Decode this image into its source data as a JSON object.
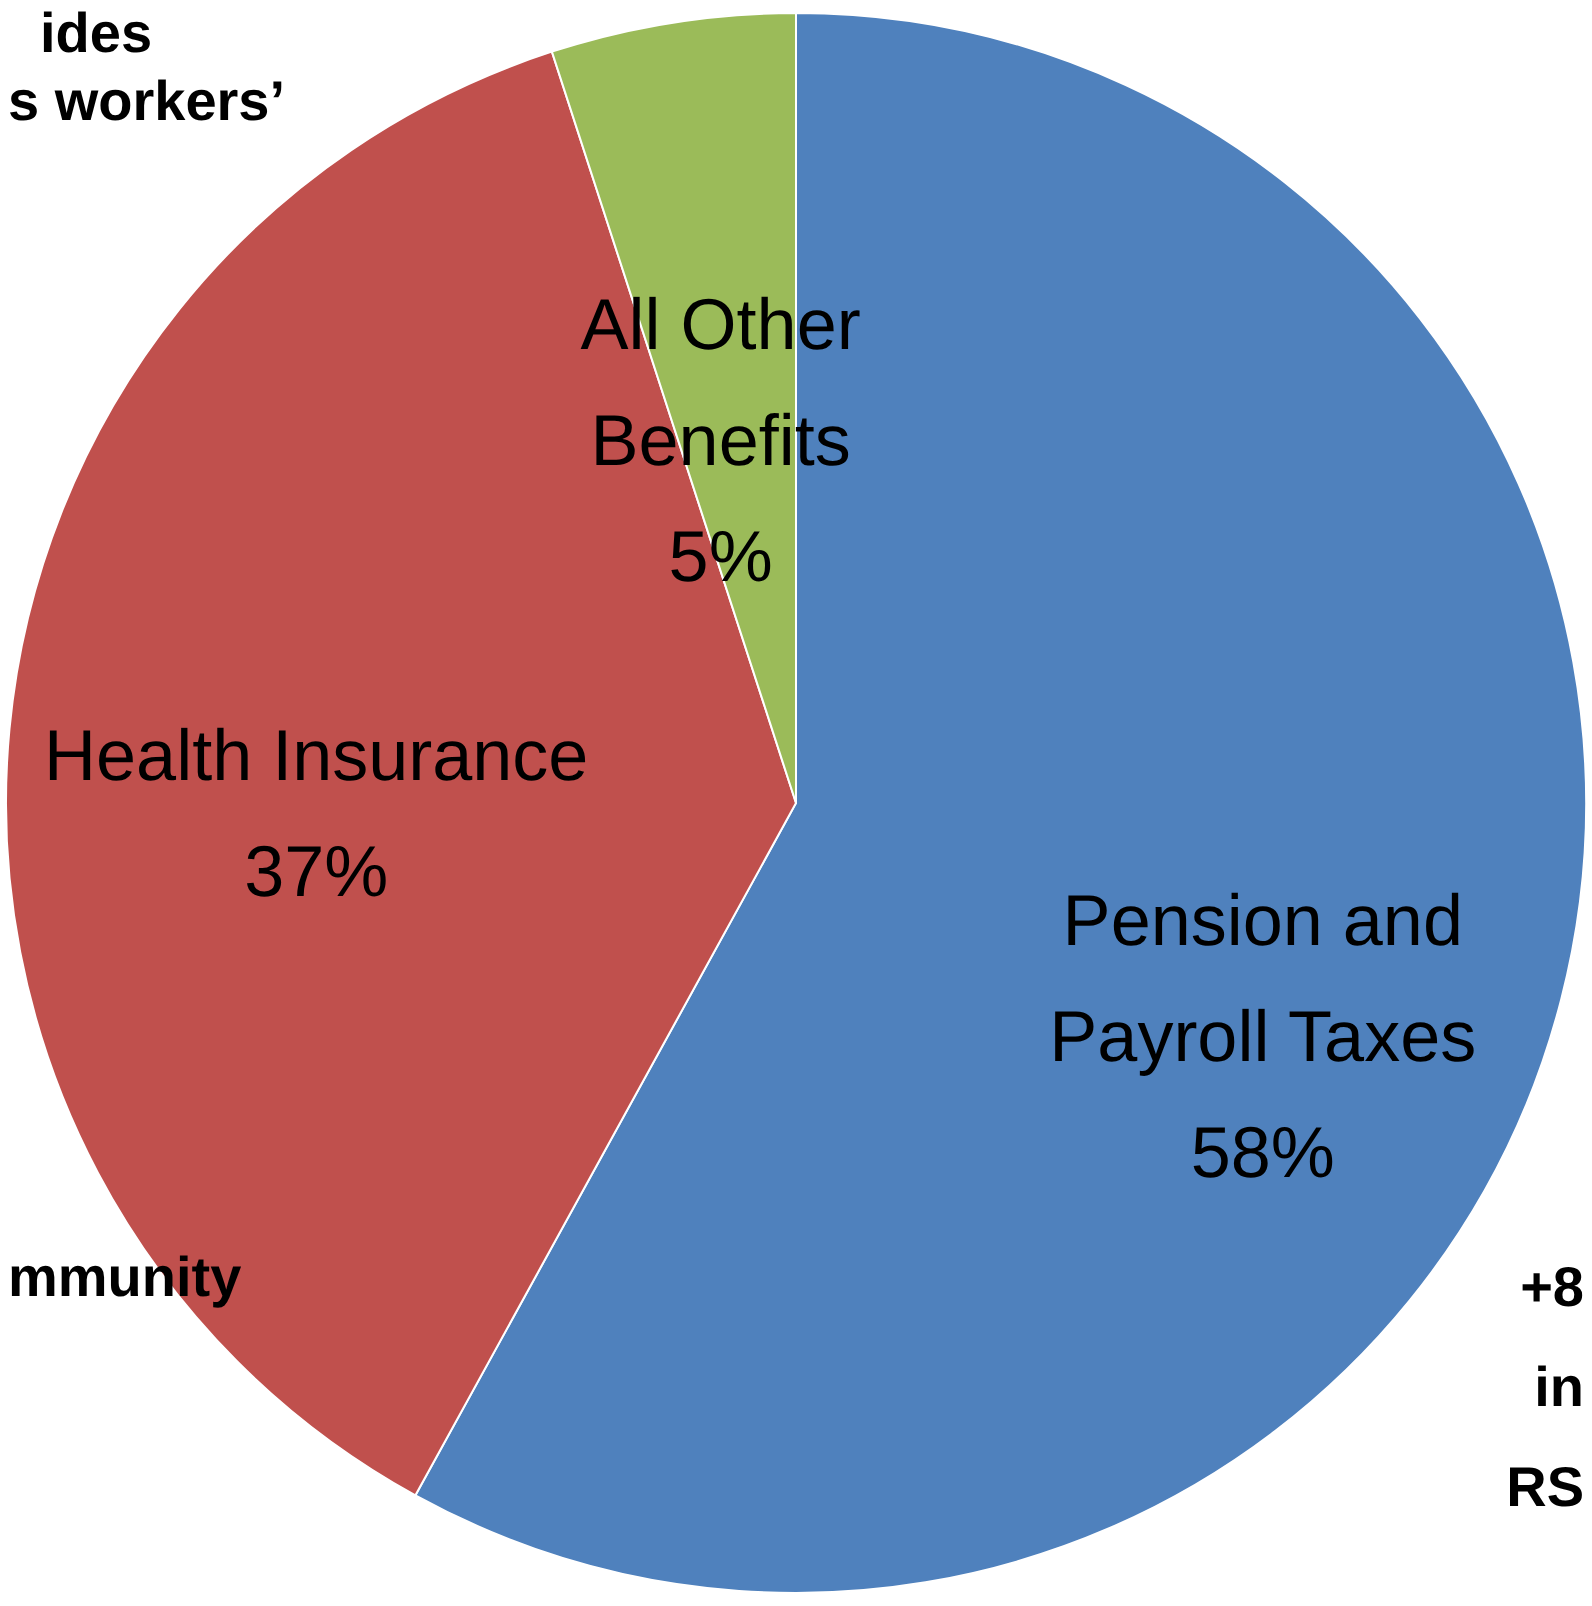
{
  "chart_data": {
    "type": "pie",
    "categories": [
      "Pension and Payroll Taxes",
      "Health Insurance",
      "All Other Benefits"
    ],
    "values": [
      58,
      37,
      5
    ],
    "colors": [
      "#4f81bd",
      "#c0504d",
      "#9bbb59"
    ],
    "value_labels": [
      "58%",
      "37%",
      "5%"
    ],
    "annotations": [
      "ides",
      "s workers’",
      "mmunity",
      "+8",
      "in",
      "RS"
    ]
  }
}
